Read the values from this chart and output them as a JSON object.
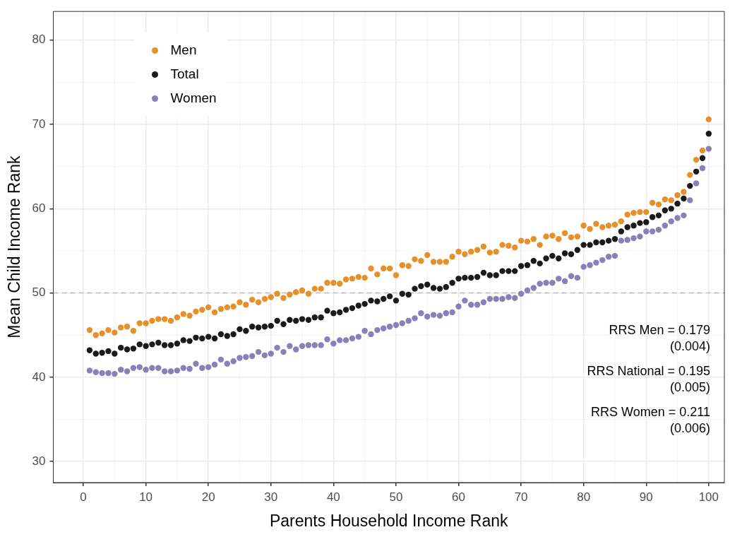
{
  "chart_data": {
    "type": "scatter",
    "xlabel": "Parents Household Income Rank",
    "ylabel": "Mean Child Income Rank",
    "x": [
      1,
      2,
      3,
      4,
      5,
      6,
      7,
      8,
      9,
      10,
      11,
      12,
      13,
      14,
      15,
      16,
      17,
      18,
      19,
      20,
      21,
      22,
      23,
      24,
      25,
      26,
      27,
      28,
      29,
      30,
      31,
      32,
      33,
      34,
      35,
      36,
      37,
      38,
      39,
      40,
      41,
      42,
      43,
      44,
      45,
      46,
      47,
      48,
      49,
      50,
      51,
      52,
      53,
      54,
      55,
      56,
      57,
      58,
      59,
      60,
      61,
      62,
      63,
      64,
      65,
      66,
      67,
      68,
      69,
      70,
      71,
      72,
      73,
      74,
      75,
      76,
      77,
      78,
      79,
      80,
      81,
      82,
      83,
      84,
      85,
      86,
      87,
      88,
      89,
      90,
      91,
      92,
      93,
      94,
      95,
      96,
      97,
      98,
      99,
      100
    ],
    "series": [
      {
        "name": "Men",
        "color": "#e6902a",
        "values": [
          45.6,
          45.0,
          45.2,
          45.6,
          45.3,
          45.9,
          46.0,
          45.5,
          46.4,
          46.4,
          46.7,
          46.9,
          46.9,
          46.7,
          47.1,
          47.5,
          47.3,
          47.8,
          48.0,
          48.3,
          47.7,
          48.1,
          48.3,
          48.4,
          48.9,
          48.6,
          49.2,
          48.9,
          49.3,
          49.5,
          49.9,
          49.4,
          49.8,
          50.1,
          50.3,
          49.9,
          50.5,
          50.5,
          51.2,
          51.2,
          51.1,
          51.6,
          51.7,
          51.9,
          51.8,
          52.9,
          52.2,
          52.9,
          52.9,
          52.1,
          53.3,
          53.2,
          54.0,
          53.8,
          54.5,
          53.7,
          53.7,
          53.7,
          54.3,
          54.9,
          54.6,
          54.9,
          55.1,
          55.5,
          54.8,
          54.9,
          55.7,
          55.6,
          55.4,
          56.2,
          56.1,
          56.4,
          55.7,
          56.7,
          56.8,
          56.4,
          57.1,
          56.6,
          56.7,
          58.0,
          57.6,
          58.2,
          57.8,
          58.0,
          58.1,
          58.5,
          59.3,
          59.5,
          59.6,
          59.6,
          60.7,
          60.5,
          61.1,
          61.0,
          61.6,
          62.0,
          64.0,
          65.8,
          66.9,
          70.6
        ]
      },
      {
        "name": "Total",
        "color": "#1a1a1a",
        "values": [
          43.2,
          42.8,
          42.9,
          43.1,
          42.8,
          43.5,
          43.3,
          43.4,
          43.9,
          43.7,
          43.9,
          44.1,
          43.8,
          43.8,
          44.0,
          44.4,
          44.3,
          44.7,
          44.6,
          44.8,
          44.6,
          45.1,
          44.9,
          45.1,
          45.7,
          45.5,
          46.0,
          45.9,
          46.0,
          46.1,
          46.7,
          46.3,
          46.8,
          46.7,
          46.9,
          46.8,
          47.1,
          47.1,
          47.9,
          47.6,
          47.7,
          48.0,
          48.2,
          48.5,
          48.7,
          49.1,
          49.0,
          49.3,
          49.6,
          49.1,
          49.9,
          49.8,
          50.5,
          50.8,
          51.0,
          50.6,
          50.5,
          50.7,
          51.2,
          51.7,
          51.8,
          51.8,
          51.9,
          52.4,
          52.1,
          52.1,
          52.6,
          52.6,
          52.6,
          53.2,
          53.3,
          53.8,
          53.5,
          54.1,
          54.4,
          54.1,
          54.7,
          54.6,
          55.1,
          55.7,
          55.7,
          56.0,
          56.0,
          56.2,
          56.4,
          57.3,
          57.8,
          58.0,
          58.3,
          58.4,
          59.0,
          59.2,
          59.8,
          60.0,
          60.6,
          61.2,
          62.7,
          64.4,
          66.0,
          68.9
        ]
      },
      {
        "name": "Women",
        "color": "#8a7fb8",
        "values": [
          40.8,
          40.6,
          40.5,
          40.5,
          40.4,
          40.9,
          40.7,
          41.1,
          41.2,
          40.9,
          41.1,
          41.1,
          40.7,
          40.7,
          40.8,
          41.1,
          41.0,
          41.6,
          41.1,
          41.2,
          41.5,
          42.1,
          41.6,
          41.9,
          42.3,
          42.4,
          42.5,
          43.0,
          42.6,
          42.8,
          43.5,
          43.0,
          43.7,
          43.3,
          43.7,
          43.8,
          43.8,
          43.8,
          44.5,
          44.0,
          44.4,
          44.4,
          44.6,
          44.8,
          45.5,
          45.1,
          45.6,
          45.8,
          46.0,
          46.2,
          46.4,
          46.7,
          47.0,
          47.6,
          47.2,
          47.4,
          47.3,
          47.6,
          47.7,
          48.4,
          49.1,
          48.6,
          48.6,
          48.9,
          49.3,
          49.3,
          49.3,
          49.5,
          49.4,
          49.9,
          50.3,
          50.6,
          51.1,
          51.2,
          51.2,
          51.7,
          51.4,
          52.0,
          51.8,
          53.1,
          53.3,
          53.6,
          53.9,
          54.3,
          54.4,
          56.2,
          56.3,
          56.5,
          56.7,
          57.3,
          57.3,
          57.5,
          58.0,
          58.5,
          58.9,
          59.2,
          61.0,
          63.0,
          64.8,
          67.1
        ]
      }
    ],
    "xlim": [
      -4.8,
      102.5
    ],
    "xticks": [
      0,
      10,
      20,
      30,
      40,
      50,
      60,
      70,
      80,
      90,
      100
    ],
    "ylim": [
      27.5,
      83.4
    ],
    "yticks": [
      30,
      40,
      50,
      60,
      70,
      80
    ],
    "ref_lines": [
      {
        "axis": "y",
        "value": 50,
        "color": "#bdbdbd",
        "line_style": "dashed"
      }
    ],
    "annotations": [
      "RRS Men = 0.179\n(0.004)",
      "RRS National = 0.195\n(0.005)",
      "RRS Women = 0.211\n(0.006)"
    ],
    "grid": true,
    "legend": "top left",
    "marker": "circle"
  }
}
